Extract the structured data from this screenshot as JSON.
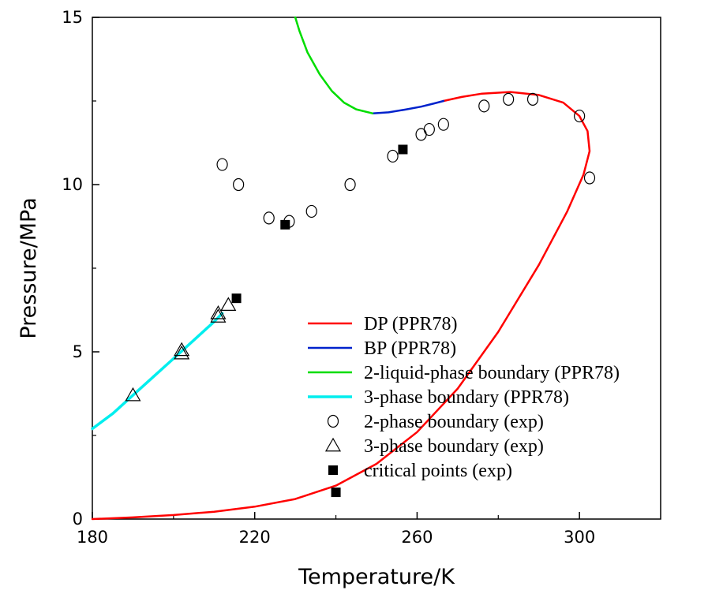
{
  "chart_data": {
    "type": "scatter",
    "xlabel": "Temperature/K",
    "ylabel": "Pressure/MPa",
    "xlim": [
      180,
      320
    ],
    "ylim": [
      0,
      15
    ],
    "x_ticks": [
      180,
      220,
      260,
      300
    ],
    "x_tick_labels": [
      "180",
      "220",
      "260",
      "300"
    ],
    "y_ticks": [
      0,
      5,
      10,
      15
    ],
    "y_tick_labels": [
      "0",
      "5",
      "10",
      "15"
    ],
    "grid": false,
    "legend_position": "lower-right",
    "lines": [
      {
        "name": "DP (PPR78)",
        "color": "#ff0000",
        "points": [
          [
            180,
            0.0
          ],
          [
            190,
            0.05
          ],
          [
            200,
            0.12
          ],
          [
            210,
            0.22
          ],
          [
            220,
            0.37
          ],
          [
            230,
            0.6
          ],
          [
            240,
            1.0
          ],
          [
            250,
            1.65
          ],
          [
            260,
            2.6
          ],
          [
            270,
            3.9
          ],
          [
            280,
            5.6
          ],
          [
            290,
            7.6
          ],
          [
            297,
            9.2
          ],
          [
            301,
            10.3
          ],
          [
            302.5,
            11.0
          ],
          [
            302,
            11.6
          ],
          [
            300,
            12.05
          ],
          [
            296,
            12.45
          ],
          [
            290,
            12.68
          ],
          [
            283,
            12.77
          ],
          [
            276,
            12.72
          ],
          [
            271,
            12.62
          ],
          [
            266.5,
            12.5
          ]
        ]
      },
      {
        "name": "BP (PPR78)",
        "color": "#0022cc",
        "points": [
          [
            249,
            12.13
          ],
          [
            253,
            12.16
          ],
          [
            257,
            12.24
          ],
          [
            261,
            12.33
          ],
          [
            264,
            12.42
          ],
          [
            266.5,
            12.5
          ]
        ]
      },
      {
        "name": "2-liquid-phase boundary (PPR78)",
        "color": "#00dd00",
        "points": [
          [
            230,
            15.0
          ],
          [
            231,
            14.6
          ],
          [
            233,
            13.95
          ],
          [
            236,
            13.3
          ],
          [
            239,
            12.8
          ],
          [
            242,
            12.45
          ],
          [
            245,
            12.25
          ],
          [
            249,
            12.13
          ]
        ]
      },
      {
        "name": "3-phase boundary (PPR78)",
        "color": "#00eeee",
        "points": [
          [
            180,
            2.7
          ],
          [
            185,
            3.15
          ],
          [
            190,
            3.7
          ],
          [
            195,
            4.25
          ],
          [
            200,
            4.8
          ],
          [
            205,
            5.35
          ],
          [
            210,
            5.9
          ],
          [
            212,
            6.15
          ]
        ]
      }
    ],
    "points": [
      {
        "name": "2-phase boundary (exp)",
        "marker": "circle",
        "points": [
          [
            212,
            10.6
          ],
          [
            216,
            10.0
          ],
          [
            223.5,
            9.0
          ],
          [
            228.5,
            8.9
          ],
          [
            234,
            9.2
          ],
          [
            243.5,
            10.0
          ],
          [
            254,
            10.85
          ],
          [
            261,
            11.5
          ],
          [
            263,
            11.65
          ],
          [
            266.5,
            11.8
          ],
          [
            276.5,
            12.35
          ],
          [
            282.5,
            12.55
          ],
          [
            288.5,
            12.55
          ],
          [
            300,
            12.05
          ],
          [
            302.5,
            10.2
          ]
        ]
      },
      {
        "name": "3-phase boundary (exp)",
        "marker": "triangle",
        "points": [
          [
            190,
            3.7
          ],
          [
            202,
            5.05
          ],
          [
            202,
            4.95
          ],
          [
            211,
            6.15
          ],
          [
            211,
            6.05
          ],
          [
            213.5,
            6.4
          ]
        ]
      },
      {
        "name": "critical points (exp)",
        "marker": "square",
        "points": [
          [
            227.5,
            8.8
          ],
          [
            215.5,
            6.6
          ],
          [
            256.5,
            11.05
          ],
          [
            240,
            0.8
          ]
        ]
      }
    ],
    "legend_entries": [
      "DP (PPR78)",
      "BP (PPR78)",
      "2-liquid-phase boundary (PPR78)",
      "3-phase boundary (PPR78)",
      "2-phase boundary (exp)",
      "3-phase boundary (exp)",
      "critical points (exp)"
    ]
  }
}
